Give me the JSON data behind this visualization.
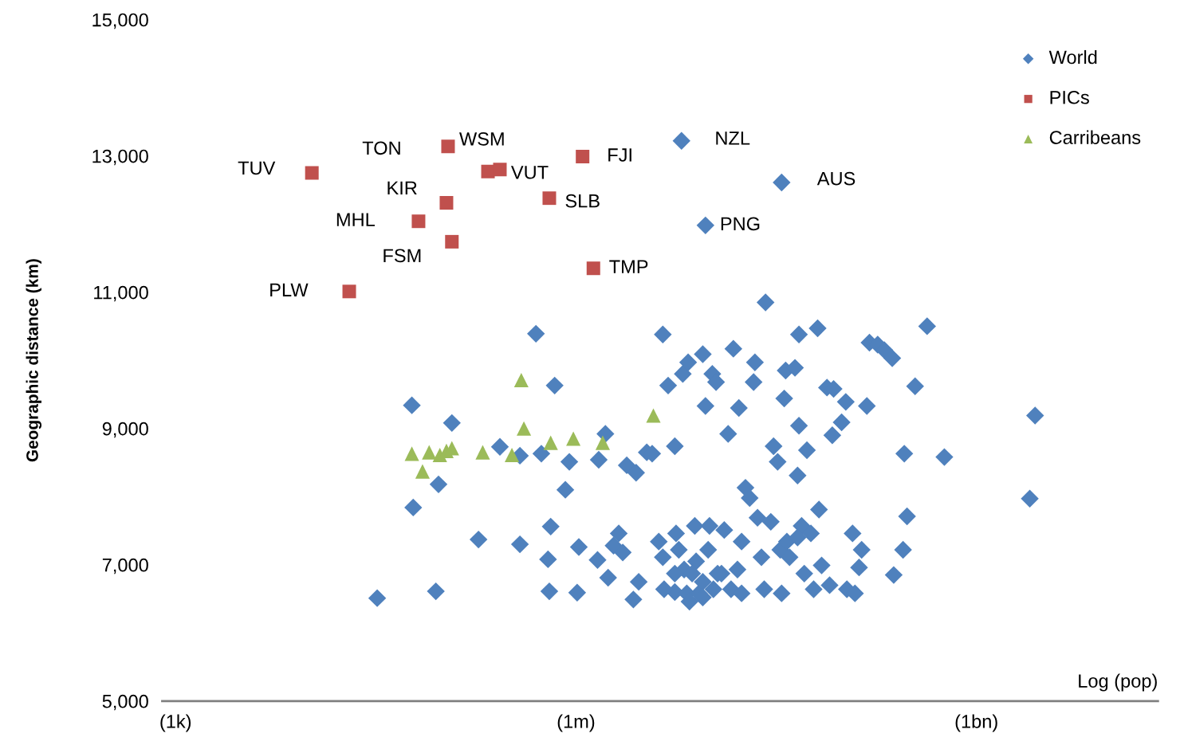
{
  "chart_data": {
    "type": "scatter",
    "xlabel": "Log (pop)",
    "ylabel": "Geographic distance (km)",
    "log": "x",
    "xlim": [
      794,
      22900000000.0
    ],
    "xticks": [
      {
        "value": 1000,
        "label": "(1k)"
      },
      {
        "value": 1000000,
        "label": "(1m)"
      },
      {
        "value": 1000000000,
        "label": "(1bn)"
      }
    ],
    "ylim": [
      5000,
      15000
    ],
    "yticks": [
      {
        "value": 5000,
        "label": "5,000"
      },
      {
        "value": 7000,
        "label": "7,000"
      },
      {
        "value": 9000,
        "label": "9,000"
      },
      {
        "value": 11000,
        "label": "11,000"
      },
      {
        "value": 13000,
        "label": "13,000"
      },
      {
        "value": 15000,
        "label": "15,000"
      }
    ],
    "grid": false,
    "legend": "top right",
    "series": [
      {
        "name": "World",
        "color": "#4f81bd",
        "marker": "diamond",
        "x": [
          32400.0,
          58900.0,
          60300.0,
          89100.0,
          93300.0,
          117500.0,
          186000.0,
          269000.0,
          380000.0,
          380000.0,
          501000.0,
          550000.0,
          617000.0,
          631000.0,
          646000.0,
          692000.0,
          832000.0,
          891000.0,
          1020000.0,
          1050000.0,
          1480000.0,
          1450000.0,
          1660000.0,
          1740000.0,
          1910000.0,
          2090000.0,
          2240000.0,
          2400000.0,
          2690000.0,
          2820000.0,
          2950000.0,
          3390000.0,
          3720000.0,
          4170000.0,
          4470000.0,
          4900000.0,
          5500000.0,
          5500000.0,
          5620000.0,
          6310000.0,
          6460000.0,
          6760000.0,
          6920000.0,
          7760000.0,
          7940000.0,
          8320000.0,
          8910000.0,
          9330000.0,
          9770000.0,
          10000000.0,
          10500000.0,
          10700000.0,
          11200000.0,
          12300000.0,
          12900000.0,
          13800000.0,
          14500000.0,
          15100000.0,
          16600000.0,
          17400000.0,
          18600000.0,
          20000000.0,
          21400000.0,
          21900000.0,
          22900000.0,
          24500000.0,
          26300000.0,
          25700000.0,
          28800000.0,
          30200000.0,
          32400000.0,
          33900000.0,
          34700000.0,
          36300000.0,
          37200000.0,
          38000000.0,
          39800000.0,
          43700000.0,
          45700000.0,
          46800000.0,
          46800000.0,
          49000000.0,
          51300000.0,
          53700000.0,
          57500000.0,
          60300000.0,
          64600000.0,
          66100000.0,
          69200000.0,
          75900000.0,
          79400000.0,
          83200000.0,
          85100000.0,
          97700000.0,
          105000000.0,
          107000000.0,
          118000000.0,
          123000000.0,
          132000000.0,
          138000000.0,
          151000000.0,
          158000000.0,
          182000000.0,
          204000000.0,
          234000000.0,
          240000000.0,
          282000000.0,
          288000000.0,
          302000000.0,
          347000000.0,
          427000000.0,
          575000000.0,
          2510000000.0,
          2750000000.0,
          7080000.0,
          8910000.0,
          11500000.0,
          7410000.0,
          5500000.0,
          4570000.0,
          4470000.0,
          5890000.0,
          8910000.0,
          17400000.0,
          16200000.0,
          45700000.0,
          6170000.0,
          34700000.0,
          9330000.0
        ],
        "values": [
          6510,
          9340,
          7840,
          6610,
          8180,
          9080,
          7370,
          8730,
          7300,
          8600,
          10390,
          8630,
          7080,
          6610,
          7560,
          9630,
          8100,
          8510,
          6590,
          7260,
          8540,
          7070,
          8920,
          6810,
          7280,
          7460,
          7180,
          8460,
          6490,
          8350,
          6750,
          8650,
          8630,
          7340,
          10380,
          9630,
          8740,
          6600,
          7460,
          9800,
          6930,
          6580,
          9970,
          7570,
          7050,
          6580,
          10090,
          9330,
          7220,
          7570,
          9800,
          6640,
          9680,
          6870,
          7510,
          8920,
          6640,
          10170,
          9300,
          7340,
          8130,
          7980,
          9680,
          9970,
          7690,
          7110,
          10850,
          6640,
          7630,
          8740,
          8510,
          7220,
          6580,
          9440,
          9850,
          7340,
          7110,
          9890,
          8310,
          10380,
          9040,
          7570,
          6870,
          8680,
          7460,
          6640,
          10470,
          7810,
          6990,
          9600,
          6700,
          8900,
          9580,
          9090,
          9390,
          6640,
          7460,
          6580,
          6960,
          7220,
          9330,
          10260,
          10230,
          10150,
          10030,
          6850,
          7220,
          8630,
          7710,
          9620,
          10500,
          8580,
          7970,
          9190,
          6460,
          6750,
          6870,
          6870,
          6870,
          6640,
          7110,
          7220,
          6520,
          6580,
          6930,
          7400,
          13220,
          12610,
          11980
        ]
      },
      {
        "name": "PICs",
        "color": "#c0504d",
        "marker": "square",
        "x": [
          10500.0,
          20000.0,
          66100.0,
          107000.0,
          117500.0,
          110000.0,
          219000.0,
          269000.0,
          631000.0,
          1120000.0,
          1350000.0
        ],
        "values": [
          12750,
          11010,
          12040,
          12310,
          11740,
          13140,
          12770,
          12800,
          12380,
          12990,
          11350
        ]
      },
      {
        "name": "Carribeans",
        "color": "#9bbb59",
        "marker": "triangle",
        "x": [
          58900.0,
          70800.0,
          79400.0,
          95500.0,
          107000.0,
          117500.0,
          200000.0,
          331000.0,
          389000.0,
          407000.0,
          646000.0,
          955000.0,
          1585000.0,
          3800000.0
        ],
        "values": [
          8630,
          8370,
          8650,
          8610,
          8670,
          8710,
          8650,
          8610,
          9710,
          9000,
          8790,
          8850,
          8790,
          9190
        ]
      }
    ],
    "annotations": [
      {
        "text": "TUV",
        "x": 10500.0,
        "y": 12750
      },
      {
        "text": "PLW",
        "x": 20000.0,
        "y": 11010
      },
      {
        "text": "MHL",
        "x": 66100.0,
        "y": 12040
      },
      {
        "text": "KIR",
        "x": 107000.0,
        "y": 12310
      },
      {
        "text": "FSM",
        "x": 117500.0,
        "y": 11740
      },
      {
        "text": "TON",
        "x": 110000.0,
        "y": 13140
      },
      {
        "text": "WSM",
        "x": 219000.0,
        "y": 12770
      },
      {
        "text": "VUT",
        "x": 269000.0,
        "y": 12800
      },
      {
        "text": "SLB",
        "x": 631000.0,
        "y": 12380
      },
      {
        "text": "FJI",
        "x": 1120000.0,
        "y": 12990
      },
      {
        "text": "TMP",
        "x": 1350000.0,
        "y": 11350
      },
      {
        "text": "NZL",
        "x": 6170000.0,
        "y": 13220
      },
      {
        "text": "AUS",
        "x": 34700000.0,
        "y": 12610
      },
      {
        "text": "PNG",
        "x": 9330000.0,
        "y": 11980
      }
    ]
  }
}
